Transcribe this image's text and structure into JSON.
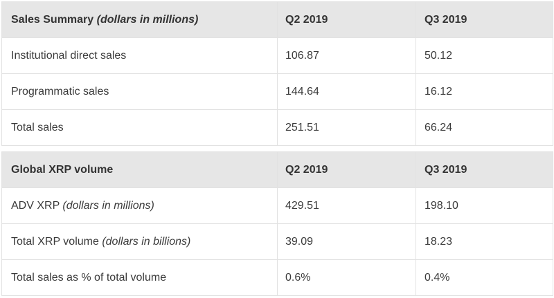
{
  "sales_summary": {
    "header": {
      "title": "Sales Summary",
      "title_note": "(dollars in millions)",
      "col_q2": "Q2 2019",
      "col_q3": "Q3 2019"
    },
    "rows": [
      {
        "label": "Institutional direct sales",
        "note": "",
        "q2": "106.87",
        "q3": "50.12"
      },
      {
        "label": "Programmatic sales",
        "note": "",
        "q2": "144.64",
        "q3": "16.12"
      },
      {
        "label": "Total sales",
        "note": "",
        "q2": "251.51",
        "q3": "66.24"
      }
    ]
  },
  "xrp_volume": {
    "header": {
      "title": "Global XRP volume",
      "col_q2": "Q2 2019",
      "col_q3": "Q3 2019"
    },
    "rows": [
      {
        "label": "ADV XRP",
        "note": "(dollars in millions)",
        "q2": "429.51",
        "q3": "198.10"
      },
      {
        "label": "Total XRP volume",
        "note": "(dollars in billions)",
        "q2": "39.09",
        "q3": "18.23"
      },
      {
        "label": "Total sales as % of total volume",
        "note": "",
        "q2": "0.6%",
        "q3": "0.4%"
      }
    ]
  },
  "colors": {
    "header_bg": "#e6e6e6",
    "border": "#e2e2e2",
    "text": "#3a3a3a"
  }
}
